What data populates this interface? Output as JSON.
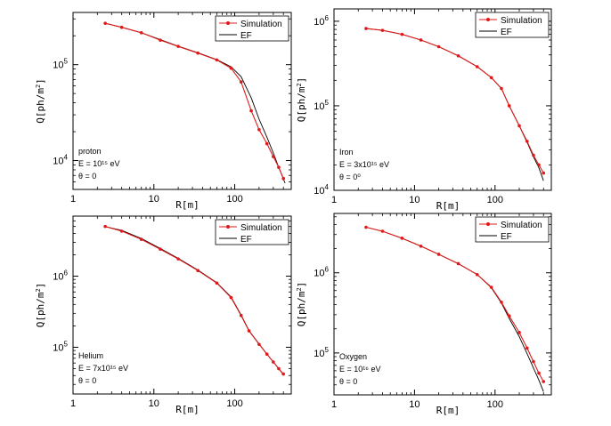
{
  "chart_data": [
    {
      "type": "line",
      "xscale": "log",
      "yscale": "log",
      "xlim": [
        1,
        500
      ],
      "ylim": [
        5000,
        350000
      ],
      "xlabel": "R[m]",
      "ylabel": "Q[ph/m2]",
      "xticks": [
        {
          "v": 1,
          "t": "1"
        },
        {
          "v": 10,
          "t": "10"
        },
        {
          "v": 100,
          "t": "100"
        }
      ],
      "yticks": [
        {
          "v": 10000,
          "b": "10",
          "e": "4"
        },
        {
          "v": 100000,
          "b": "10",
          "e": "5"
        }
      ],
      "annotations": [
        "proton",
        "E = 10¹⁵ eV",
        "θ = 0"
      ],
      "legend": [
        "Simulation",
        "EF"
      ],
      "legend_position": "top-right",
      "series": [
        {
          "name": "Simulation",
          "color": "#e01818",
          "marker": "dot",
          "x": [
            2.5,
            4,
            7,
            12,
            20,
            35,
            60,
            90,
            120,
            160,
            200,
            250,
            300,
            350,
            400
          ],
          "y": [
            270000,
            245000,
            215000,
            180000,
            155000,
            132000,
            112000,
            92000,
            66000,
            33000,
            21000,
            15000,
            11000,
            8500,
            6500
          ]
        },
        {
          "name": "EF",
          "color": "#000000",
          "marker": "none",
          "x": [
            2.5,
            4,
            7,
            12,
            20,
            35,
            60,
            90,
            120,
            160,
            200,
            250,
            300,
            350,
            420
          ],
          "y": [
            270000,
            245000,
            215000,
            182000,
            156000,
            133000,
            113000,
            95000,
            75000,
            45000,
            27000,
            17500,
            12000,
            8500,
            5800
          ]
        }
      ]
    },
    {
      "type": "line",
      "xscale": "log",
      "yscale": "log",
      "xlim": [
        1,
        500
      ],
      "ylim": [
        10000,
        1400000
      ],
      "xlabel": "R[m]",
      "ylabel": "Q[ph/m2]",
      "xticks": [
        {
          "v": 1,
          "t": "1"
        },
        {
          "v": 10,
          "t": "10"
        },
        {
          "v": 100,
          "t": "100"
        }
      ],
      "yticks": [
        {
          "v": 10000,
          "b": "10",
          "e": "4"
        },
        {
          "v": 100000,
          "b": "10",
          "e": "5"
        },
        {
          "v": 1000000,
          "b": "10",
          "e": "6"
        }
      ],
      "annotations": [
        "Iron",
        "E = 3x10¹⁵ eV",
        "θ = 0⁰"
      ],
      "legend": [
        "Simulation",
        "EF"
      ],
      "legend_position": "top-right",
      "series": [
        {
          "name": "Simulation",
          "color": "#e01818",
          "marker": "dot",
          "x": [
            2.5,
            4,
            7,
            12,
            20,
            35,
            60,
            90,
            120,
            150,
            200,
            250,
            300,
            350,
            400
          ],
          "y": [
            820000,
            780000,
            700000,
            600000,
            500000,
            390000,
            290000,
            215000,
            160000,
            100000,
            58000,
            38000,
            26000,
            20000,
            16000
          ]
        },
        {
          "name": "EF",
          "color": "#000000",
          "marker": "none",
          "x": [
            2.5,
            4,
            7,
            12,
            20,
            35,
            60,
            90,
            120,
            150,
            200,
            250,
            300,
            350,
            400
          ],
          "y": [
            820000,
            780000,
            700000,
            600000,
            500000,
            390000,
            290000,
            215000,
            160000,
            100000,
            58000,
            37000,
            25000,
            18500,
            13000
          ]
        }
      ]
    },
    {
      "type": "line",
      "xscale": "log",
      "yscale": "log",
      "xlim": [
        1,
        500
      ],
      "ylim": [
        22000,
        7000000
      ],
      "xlabel": "R[m]",
      "ylabel": "Q[ph/m2]",
      "xticks": [
        {
          "v": 1,
          "t": "1"
        },
        {
          "v": 10,
          "t": "10"
        },
        {
          "v": 100,
          "t": "100"
        }
      ],
      "yticks": [
        {
          "v": 100000,
          "b": "10",
          "e": "5"
        },
        {
          "v": 1000000,
          "b": "10",
          "e": "6"
        }
      ],
      "annotations": [
        "Helium",
        "E = 7x10¹⁵ eV",
        "θ = 0"
      ],
      "legend": [
        "Simulation",
        "EF"
      ],
      "legend_position": "top-right",
      "series": [
        {
          "name": "Simulation",
          "color": "#e01818",
          "marker": "dot",
          "x": [
            2.5,
            4,
            7,
            12,
            20,
            35,
            60,
            90,
            120,
            150,
            200,
            250,
            300,
            350,
            400
          ],
          "y": [
            5000000,
            4300000,
            3300000,
            2400000,
            1750000,
            1200000,
            800000,
            500000,
            280000,
            170000,
            110000,
            80000,
            62000,
            50000,
            42000
          ]
        },
        {
          "name": "EF",
          "color": "#000000",
          "marker": "none",
          "x": [
            2.5,
            4,
            7,
            12,
            20,
            35,
            60,
            90,
            120,
            150,
            200,
            250,
            300,
            350,
            400
          ],
          "y": [
            5000000,
            4400000,
            3400000,
            2450000,
            1780000,
            1220000,
            810000,
            510000,
            285000,
            172000,
            111000,
            80000,
            62000,
            50000,
            41000
          ]
        }
      ]
    },
    {
      "type": "line",
      "xscale": "log",
      "yscale": "log",
      "xlim": [
        1,
        500
      ],
      "ylim": [
        30000,
        5500000
      ],
      "xlabel": "R[m]",
      "ylabel": "Q[ph/m2]",
      "xticks": [
        {
          "v": 1,
          "t": "1"
        },
        {
          "v": 10,
          "t": "10"
        },
        {
          "v": 100,
          "t": "100"
        }
      ],
      "yticks": [
        {
          "v": 100000,
          "b": "10",
          "e": "5"
        },
        {
          "v": 1000000,
          "b": "10",
          "e": "6"
        }
      ],
      "annotations": [
        "Oxygen",
        "E = 10¹⁶ eV",
        "θ = 0"
      ],
      "legend": [
        "Simulation",
        "EF"
      ],
      "legend_position": "top-right",
      "series": [
        {
          "name": "Simulation",
          "color": "#e01818",
          "marker": "dot",
          "x": [
            2.5,
            4,
            7,
            12,
            20,
            35,
            60,
            90,
            120,
            150,
            200,
            250,
            300,
            350,
            400
          ],
          "y": [
            3700000,
            3300000,
            2700000,
            2150000,
            1700000,
            1300000,
            950000,
            660000,
            430000,
            290000,
            180000,
            115000,
            78000,
            56000,
            44000
          ]
        },
        {
          "name": "EF",
          "color": "#000000",
          "marker": "none",
          "x": [
            2.5,
            4,
            7,
            12,
            20,
            35,
            60,
            90,
            120,
            150,
            200,
            250,
            300,
            350,
            400
          ],
          "y": [
            3700000,
            3300000,
            2700000,
            2150000,
            1700000,
            1300000,
            950000,
            650000,
            420000,
            270000,
            160000,
            98000,
            65000,
            46000,
            33000
          ]
        }
      ]
    }
  ]
}
